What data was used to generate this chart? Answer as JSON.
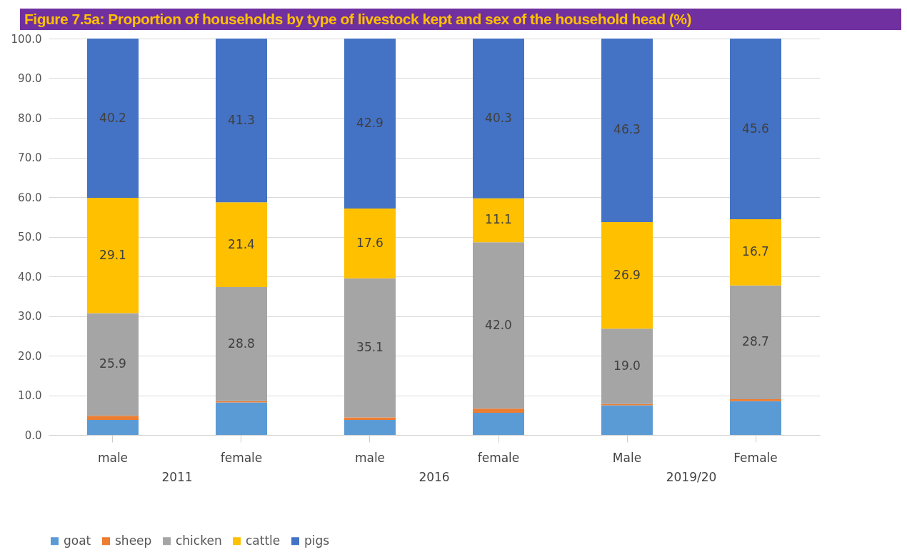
{
  "chart_data": {
    "type": "bar",
    "stacked": true,
    "title": "Figure 7.5a: Proportion of households by type of livestock kept and sex of the household head (%)",
    "categories": [
      "male",
      "female",
      "male",
      "female",
      "Male",
      "Female"
    ],
    "annotations": [
      "2011",
      "2016",
      "2019/20"
    ],
    "series": [
      {
        "name": "goat",
        "color": "#5b9bd5",
        "values": [
          3.8,
          8.2,
          3.8,
          5.6,
          7.5,
          8.5
        ]
      },
      {
        "name": "sheep",
        "color": "#ed7d31",
        "values": [
          1.0,
          0.3,
          0.6,
          1.0,
          0.3,
          0.5
        ]
      },
      {
        "name": "chicken",
        "color": "#a5a5a5",
        "values": [
          25.9,
          28.8,
          35.1,
          42.0,
          19.0,
          28.7
        ],
        "value_labels": [
          "25.9",
          "28.8",
          "35.1",
          "42.0",
          "19.0",
          "28.7"
        ]
      },
      {
        "name": "cattle",
        "color": "#ffc000",
        "values": [
          29.1,
          21.4,
          17.6,
          11.1,
          26.9,
          16.7
        ],
        "value_labels": [
          "29.1",
          "21.4",
          "17.6",
          "11.1",
          "26.9",
          "16.7"
        ]
      },
      {
        "name": "pigs",
        "color": "#4472c4",
        "values": [
          40.2,
          41.3,
          42.9,
          40.3,
          46.3,
          45.6
        ],
        "value_labels": [
          "40.2",
          "41.3",
          "42.9",
          "40.3",
          "46.3",
          "45.6"
        ]
      }
    ],
    "ylim": [
      0,
      100
    ],
    "yticks": [
      {
        "value": 0,
        "label": "0.0"
      },
      {
        "value": 10,
        "label": "10.0"
      },
      {
        "value": 20,
        "label": "20.0"
      },
      {
        "value": 30,
        "label": "30.0"
      },
      {
        "value": 40,
        "label": "40.0"
      },
      {
        "value": 50,
        "label": "50.0"
      },
      {
        "value": 60,
        "label": "60.0"
      },
      {
        "value": 70,
        "label": "70.0"
      },
      {
        "value": 80,
        "label": "80.0"
      },
      {
        "value": 90,
        "label": "90.0"
      },
      {
        "value": 100,
        "label": "100.0"
      }
    ],
    "grid": "y",
    "legend": "bottom"
  }
}
